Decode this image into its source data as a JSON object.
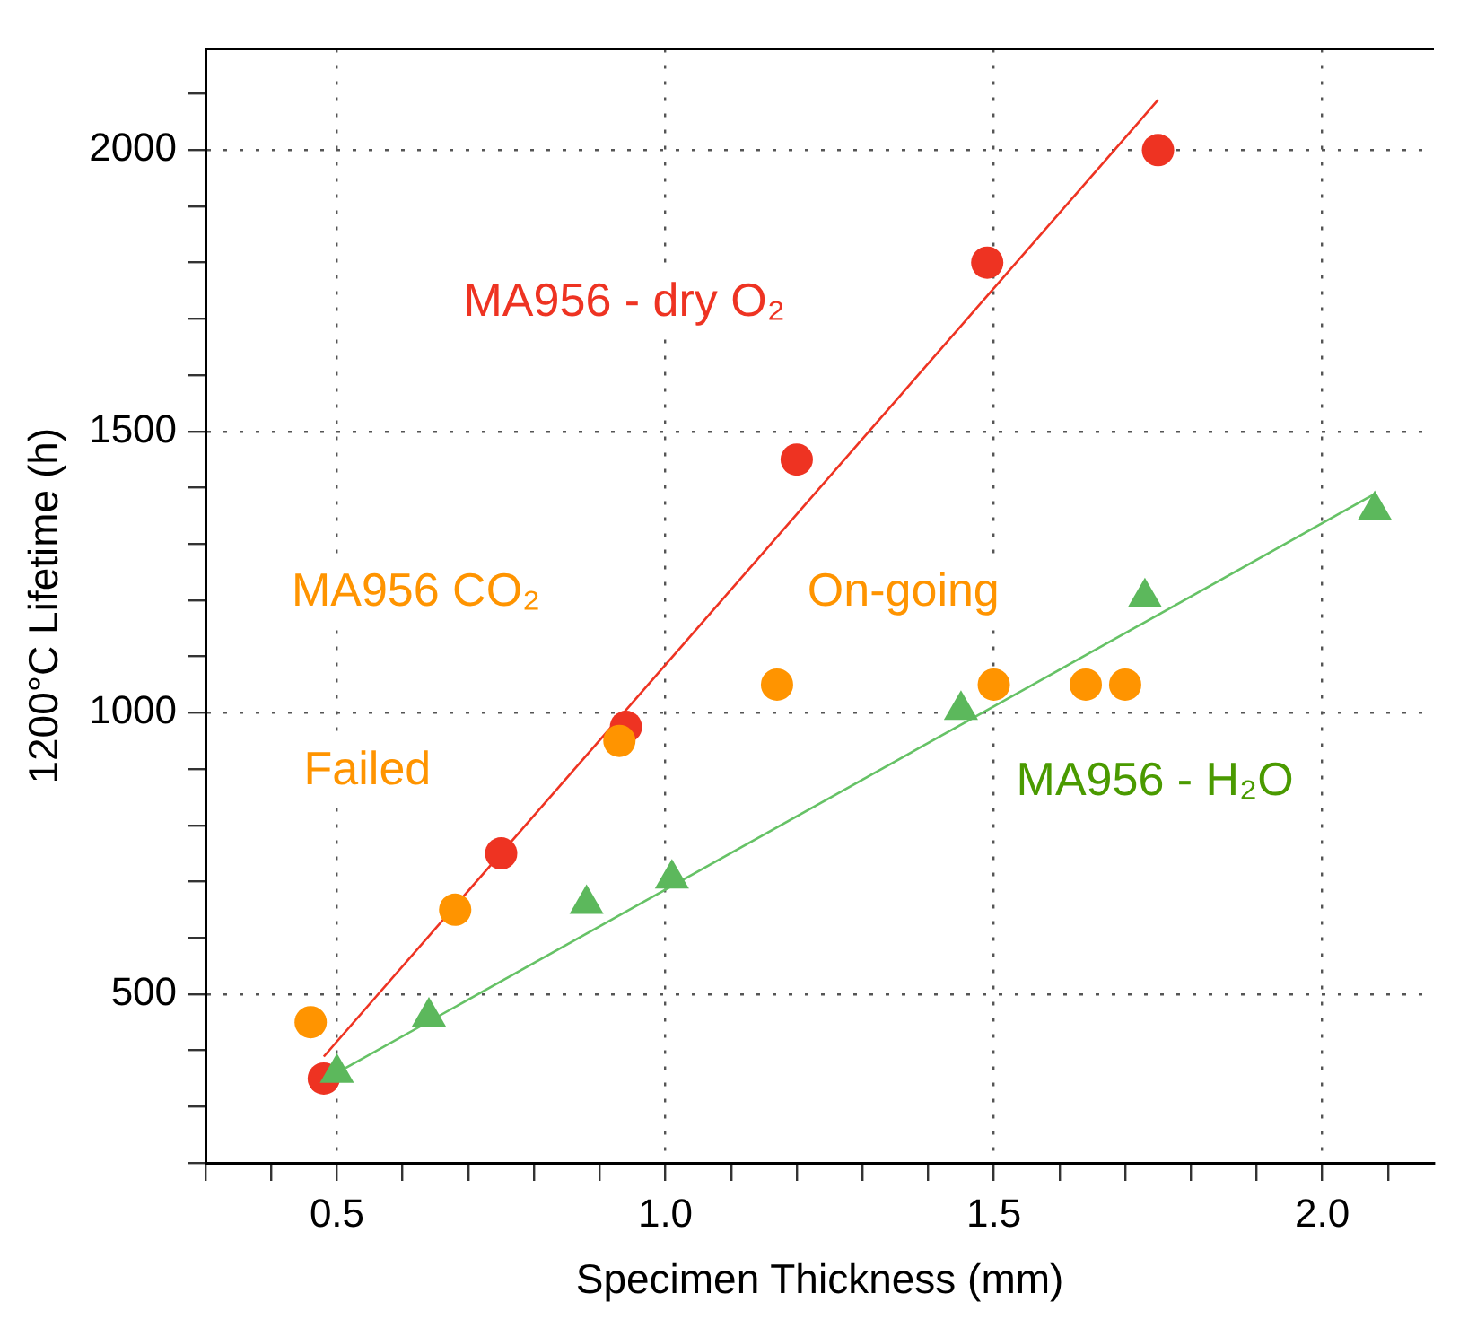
{
  "chart_data": {
    "type": "scatter",
    "xlabel": "Specimen Thickness (mm)",
    "ylabel": "1200°C Lifetime (h)",
    "xlim": [
      0.3,
      2.17
    ],
    "ylim": [
      200,
      2180
    ],
    "xticks": [
      {
        "value": 0.3,
        "label": null
      },
      {
        "value": 0.4,
        "label": null
      },
      {
        "value": 0.5,
        "label": "0.5"
      },
      {
        "value": 0.6,
        "label": null
      },
      {
        "value": 0.7,
        "label": null
      },
      {
        "value": 0.8,
        "label": null
      },
      {
        "value": 0.9,
        "label": null
      },
      {
        "value": 1.0,
        "label": "1.0"
      },
      {
        "value": 1.1,
        "label": null
      },
      {
        "value": 1.2,
        "label": null
      },
      {
        "value": 1.3,
        "label": null
      },
      {
        "value": 1.4,
        "label": null
      },
      {
        "value": 1.5,
        "label": "1.5"
      },
      {
        "value": 1.6,
        "label": null
      },
      {
        "value": 1.7,
        "label": null
      },
      {
        "value": 1.8,
        "label": null
      },
      {
        "value": 1.9,
        "label": null
      },
      {
        "value": 2.0,
        "label": "2.0"
      },
      {
        "value": 2.1,
        "label": null
      }
    ],
    "yticks": [
      {
        "value": 200,
        "label": null
      },
      {
        "value": 300,
        "label": null
      },
      {
        "value": 400,
        "label": null
      },
      500,
      {
        "value": 600,
        "label": null
      },
      {
        "value": 700,
        "label": null
      },
      {
        "value": 800,
        "label": null
      },
      {
        "value": 900,
        "label": null
      },
      1000,
      {
        "value": 1100,
        "label": null
      },
      {
        "value": 1200,
        "label": null
      },
      {
        "value": 1300,
        "label": null
      },
      {
        "value": 1400,
        "label": null
      },
      1500,
      {
        "value": 1600,
        "label": null
      },
      {
        "value": 1700,
        "label": null
      },
      {
        "value": 1800,
        "label": null
      },
      {
        "value": 1900,
        "label": null
      },
      2000,
      {
        "value": 2100,
        "label": null
      }
    ],
    "grid": true,
    "series": [
      {
        "type": "line",
        "color": "#ee3322",
        "x": [
          0.48,
          1.75
        ],
        "values": [
          389,
          2089
        ],
        "marker": "none",
        "line_style": "solid"
      },
      {
        "type": "line",
        "color": "#66c266",
        "x": [
          0.5,
          2.08
        ],
        "values": [
          360,
          1389
        ],
        "marker": "none",
        "line_style": "solid"
      },
      {
        "name": "MA956 - dry O₂",
        "color": "#ee3322",
        "marker": "circle",
        "x": [
          0.48,
          0.75,
          0.94,
          1.2,
          1.49,
          1.75
        ],
        "values": [
          350,
          750,
          975,
          1450,
          1800,
          2000
        ]
      },
      {
        "name": "MA956 CO₂",
        "color": "#ff9400",
        "marker": "circle",
        "x": [
          0.46,
          0.68,
          0.93,
          1.17,
          1.5,
          1.64,
          1.7
        ],
        "values": [
          450,
          650,
          950,
          1050,
          1050,
          1050,
          1050
        ]
      },
      {
        "name": "MA956 - H₂O",
        "color": "#5cb85c",
        "marker": "triangle",
        "x": [
          0.5,
          0.64,
          0.88,
          1.01,
          1.45,
          1.73,
          2.08
        ],
        "values": [
          360,
          460,
          660,
          705,
          1005,
          1205,
          1360
        ]
      }
    ],
    "annotations": [
      "Failed",
      "On-going"
    ]
  }
}
